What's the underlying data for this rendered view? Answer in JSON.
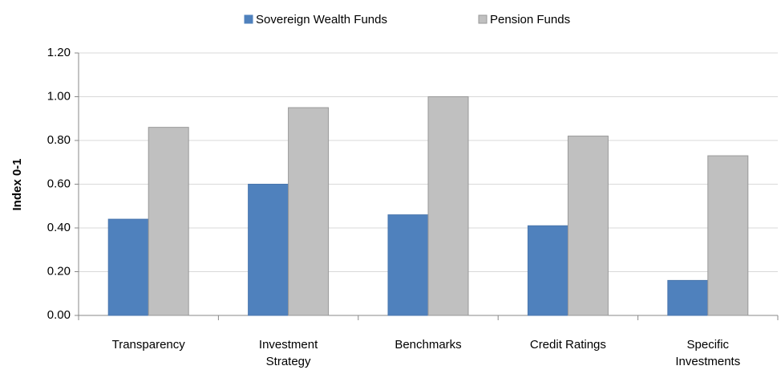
{
  "chart_data": {
    "type": "bar",
    "y_label": "Index 0-1",
    "categories": [
      "Transparency",
      "Investment Strategy",
      "Benchmarks",
      "Credit Ratings",
      "Specific Investments"
    ],
    "series": [
      {
        "name": "Sovereign Wealth Funds",
        "color": "#4f81bd",
        "values": [
          0.44,
          0.6,
          0.46,
          0.41,
          0.16
        ]
      },
      {
        "name": "Pension Funds",
        "color": "#c0c0c0",
        "values": [
          0.86,
          0.95,
          1.0,
          0.82,
          0.73
        ]
      }
    ],
    "ylim": [
      0,
      1.2
    ],
    "yticks": [
      {
        "value": 0,
        "label": "0.00"
      },
      {
        "value": 0.2,
        "label": "0.20"
      },
      {
        "value": 0.4,
        "label": "0.40"
      },
      {
        "value": 0.6,
        "label": "0.60"
      },
      {
        "value": 0.8,
        "label": "0.80"
      },
      {
        "value": 1.0,
        "label": "1.00"
      },
      {
        "value": 1.2,
        "label": "1.20"
      }
    ],
    "grid": true,
    "legend": "top"
  }
}
